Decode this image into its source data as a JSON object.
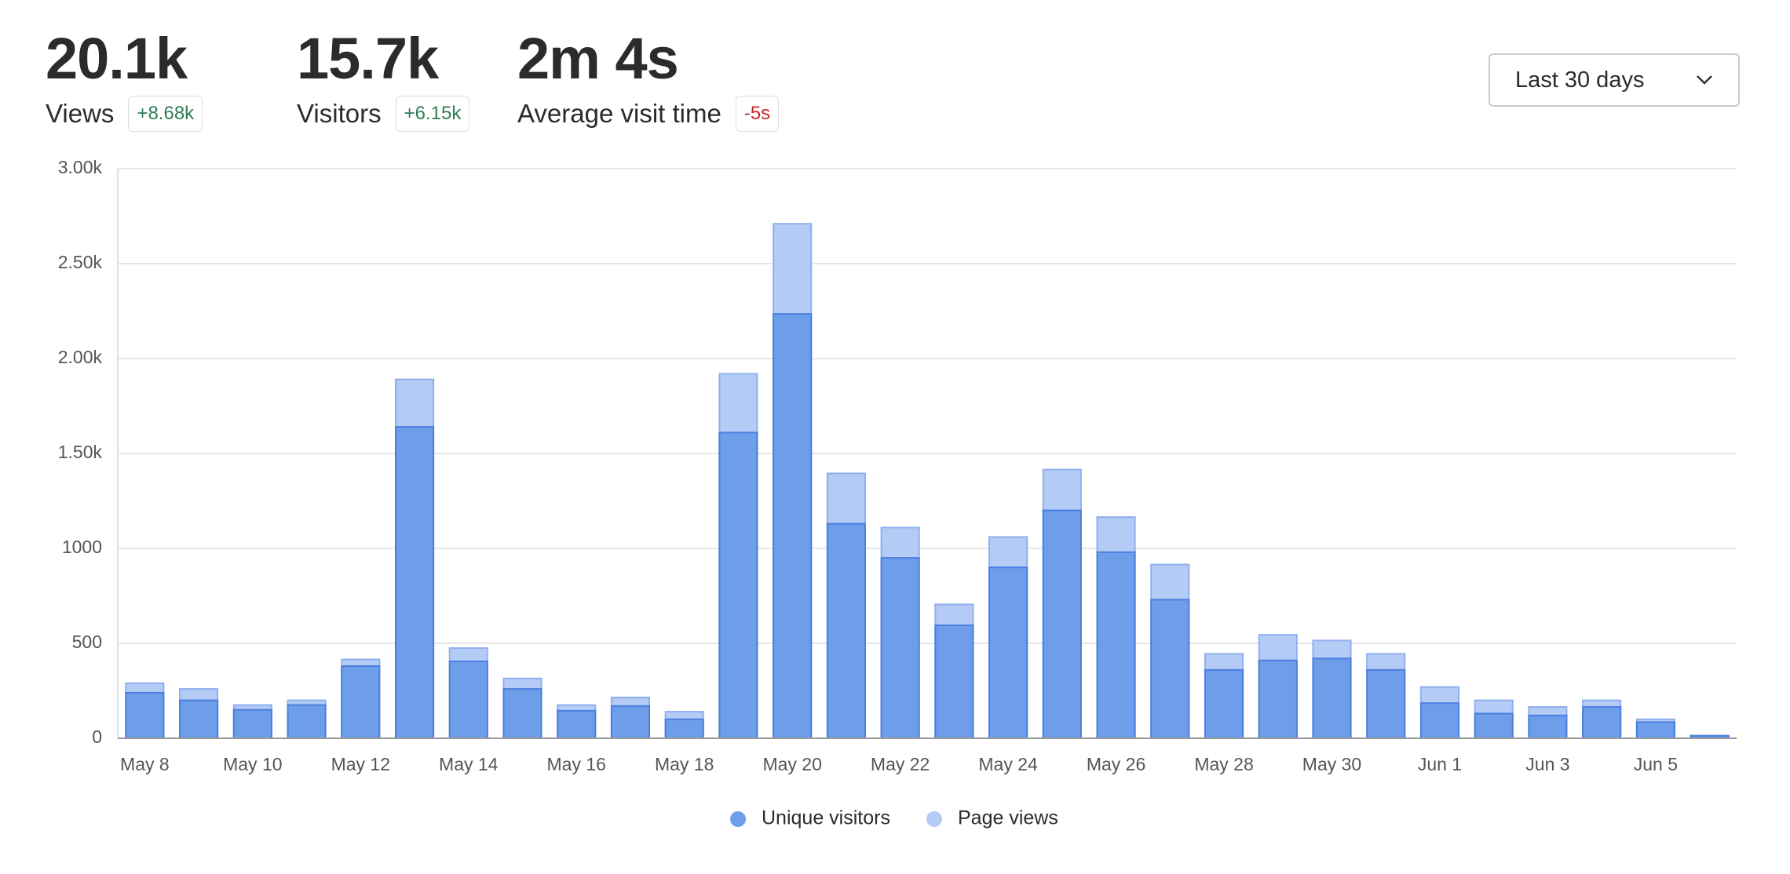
{
  "stats": [
    {
      "value": "20.1k",
      "label": "Views",
      "change": "+8.68k"
    },
    {
      "value": "15.7k",
      "label": "Visitors",
      "change": "+6.15k"
    },
    {
      "value": "2m 4s",
      "label": "Average visit time",
      "change": "-5s"
    }
  ],
  "dropdown": {
    "label": "Last 30 days"
  },
  "chart_data": {
    "type": "bar",
    "categories": [
      "May 8",
      null,
      "May 10",
      null,
      "May 12",
      null,
      "May 14",
      null,
      "May 16",
      null,
      "May 18",
      null,
      "May 20",
      null,
      "May 22",
      null,
      "May 24",
      null,
      "May 26",
      null,
      "May 28",
      null,
      "May 30",
      null,
      "Jun 1",
      null,
      "Jun 3",
      null,
      "Jun 5",
      null
    ],
    "series": [
      {
        "name": "Page views",
        "color": "#b3cbf5",
        "values": [
          290,
          260,
          175,
          200,
          415,
          1890,
          475,
          315,
          175,
          215,
          140,
          1920,
          2710,
          1395,
          1110,
          705,
          1060,
          1415,
          1165,
          915,
          445,
          545,
          515,
          445,
          270,
          200,
          165,
          200,
          100,
          15
        ]
      },
      {
        "name": "Unique visitors",
        "color": "#6e9de9",
        "values": [
          240,
          200,
          150,
          175,
          380,
          1640,
          405,
          260,
          145,
          170,
          100,
          1610,
          2235,
          1130,
          950,
          595,
          900,
          1200,
          980,
          730,
          360,
          410,
          420,
          360,
          185,
          130,
          120,
          165,
          85,
          12
        ]
      }
    ],
    "ylim": [
      0,
      3000
    ],
    "yticks": [
      0,
      500,
      1000,
      {
        "value": 1500,
        "label": "1.50k"
      },
      {
        "value": 2000,
        "label": "2.00k"
      },
      {
        "value": 2500,
        "label": "2.50k"
      },
      {
        "value": 3000,
        "label": "3.00k"
      }
    ],
    "grid": true
  }
}
